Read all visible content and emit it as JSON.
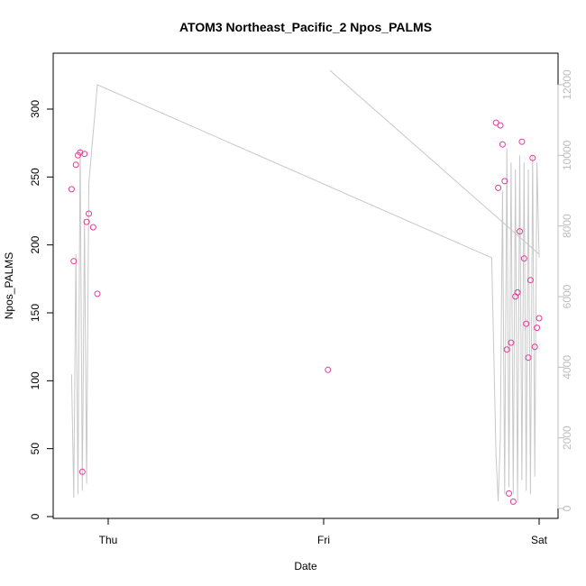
{
  "chart_data": {
    "type": "scatter",
    "title": "ATOM3 Northeast_Pacific_2 Npos_PALMS",
    "xlabel": "Date",
    "ylabel": "Npos_PALMS",
    "x_unit": "days",
    "x_ticks": [
      {
        "value": 0,
        "label": "Thu"
      },
      {
        "value": 1,
        "label": "Fri"
      },
      {
        "value": 2,
        "label": "Sat"
      }
    ],
    "xlim": [
      -0.2,
      2.06
    ],
    "ylim": [
      0,
      330
    ],
    "y_ticks": [
      0,
      50,
      100,
      150,
      200,
      250,
      300
    ],
    "y2lim": [
      0,
      12200
    ],
    "y2_ticks": [
      0,
      2000,
      4000,
      6000,
      8000,
      10000,
      12000
    ],
    "grid": false,
    "point_color": "#e6399b",
    "line_color": "#c8c8c8",
    "right_axis_color": "#bdbdbd",
    "series": [
      {
        "type": "scatter",
        "axis": "left",
        "x": [
          -0.17,
          -0.16,
          -0.15,
          -0.14,
          -0.13,
          -0.12,
          -0.11,
          -0.1,
          -0.09,
          -0.07,
          -0.05,
          1.02,
          1.8,
          1.81,
          1.82,
          1.83,
          1.84,
          1.85,
          1.86,
          1.87,
          1.88,
          1.89,
          1.9,
          1.91,
          1.92,
          1.93,
          1.94,
          1.95,
          1.96,
          1.97,
          1.98,
          1.99,
          2.0
        ],
        "y": [
          241,
          188,
          259,
          266,
          268,
          33,
          267,
          217,
          223,
          213,
          164,
          108,
          290,
          242,
          288,
          274,
          247,
          123,
          17,
          128,
          11,
          162,
          165,
          210,
          276,
          190,
          142,
          117,
          174,
          264,
          125,
          139,
          146
        ]
      },
      {
        "type": "line",
        "axis": "right",
        "x": [
          -0.17,
          -0.16,
          -0.15,
          -0.14,
          -0.13,
          -0.12,
          -0.11,
          -0.1,
          -0.09,
          -0.05,
          1.78,
          1.8,
          1.81,
          1.82,
          1.83,
          1.84,
          1.85,
          1.86,
          1.87,
          1.88,
          1.89,
          1.9,
          1.91,
          1.92,
          1.93,
          1.94,
          1.95,
          1.96,
          1.97,
          1.98,
          1.99,
          2.0
        ],
        "y": [
          3800,
          300,
          7200,
          400,
          10200,
          500,
          8200,
          700,
          9200,
          12000,
          7100,
          1500,
          200,
          2000,
          9000,
          400,
          10200,
          600,
          9800,
          400,
          9600,
          200,
          10000,
          800,
          9800,
          500,
          9600,
          400,
          10000,
          900,
          9800,
          7100
        ]
      },
      {
        "type": "line",
        "axis": "right",
        "x": [
          1.03,
          2.0
        ],
        "y": [
          12400,
          7200
        ]
      }
    ]
  }
}
